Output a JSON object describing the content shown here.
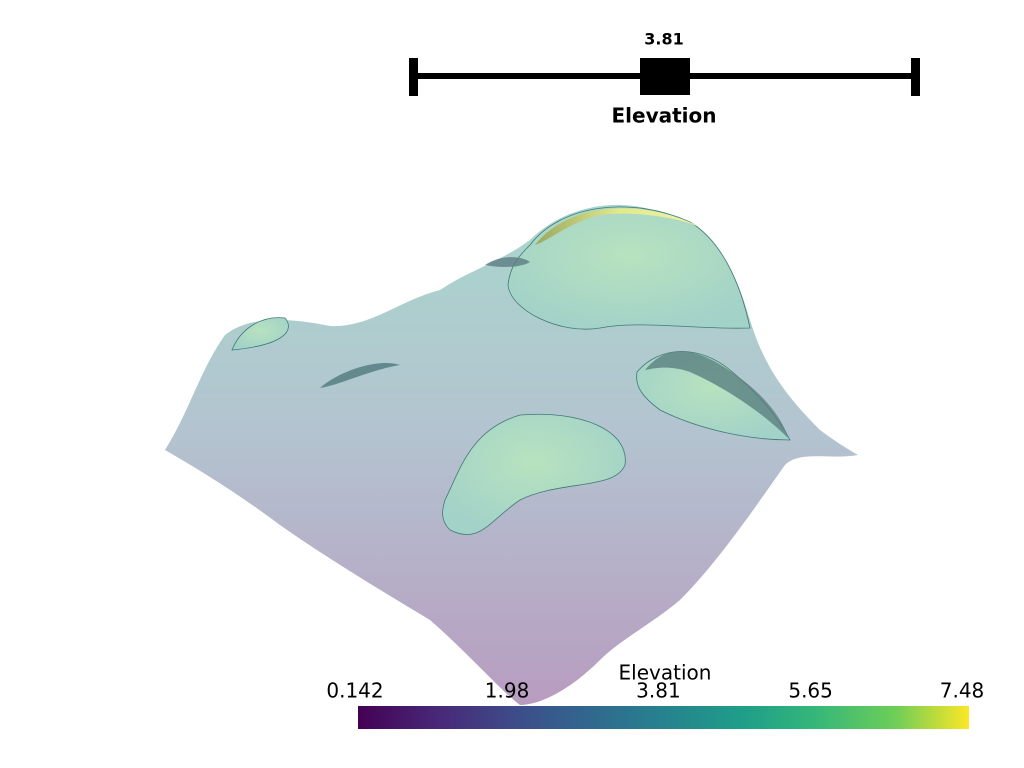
{
  "slider": {
    "title": "Elevation",
    "value": "3.81"
  },
  "colorbar": {
    "title": "Elevation",
    "ticks": [
      0.142,
      1.98,
      3.81,
      5.65,
      7.48
    ]
  }
}
